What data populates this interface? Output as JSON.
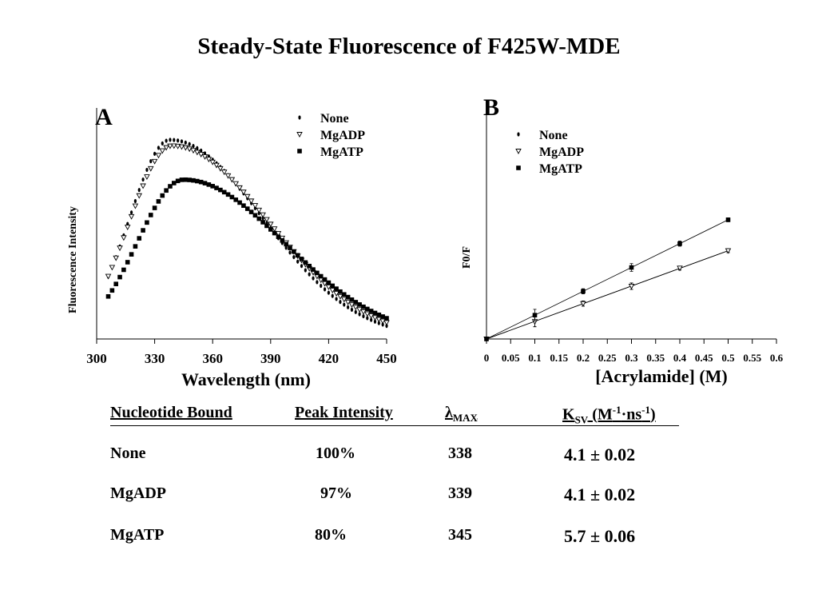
{
  "title": "Steady-State Fluorescence of F425W-MDE",
  "chart_data": [
    {
      "panel": "A",
      "type": "scatter",
      "xlabel": "Wavelength (nm)",
      "ylabel": "Fluorescence Intensity",
      "xlim": [
        300,
        450
      ],
      "ylim": [
        0,
        1.1
      ],
      "xticks": [
        300,
        330,
        360,
        390,
        420,
        450
      ],
      "xtick_labels": [
        "300",
        "330",
        "360",
        "390",
        "420",
        "450"
      ],
      "legend": {
        "position": "top-right",
        "entries": [
          "None",
          "MgADP",
          "MgATP"
        ]
      },
      "series": [
        {
          "name": "None",
          "marker": "dot",
          "color": "#000000",
          "peak_x": 338,
          "peak_y": 1.0,
          "width_left": 21,
          "width_right": 48,
          "start_x": 306,
          "end_x": 450
        },
        {
          "name": "MgADP",
          "marker": "open-triangle",
          "color": "#000000",
          "peak_x": 339,
          "peak_y": 0.97,
          "width_left": 22,
          "width_right": 50,
          "start_x": 306,
          "end_x": 450
        },
        {
          "name": "MgATP",
          "marker": "square",
          "color": "#000000",
          "peak_x": 345,
          "peak_y": 0.8,
          "width_left": 24,
          "width_right": 52,
          "start_x": 306,
          "end_x": 450
        }
      ]
    },
    {
      "panel": "B",
      "type": "scatter",
      "xlabel": "[Acrylamide] (M)",
      "ylabel": "F0/F",
      "xlim": [
        0,
        0.6
      ],
      "ylim": [
        1.0,
        4.4
      ],
      "xticks": [
        0,
        0.05,
        0.1,
        0.15,
        0.2,
        0.25,
        0.3,
        0.35,
        0.4,
        0.45,
        0.5,
        0.55,
        0.6
      ],
      "xtick_labels": [
        "0",
        "0.05",
        "0.1",
        "0.15",
        "0.2",
        "0.25",
        "0.3",
        "0.35",
        "0.4",
        "0.45",
        "0.5",
        "0.55",
        "0.6"
      ],
      "legend": {
        "position": "top-left",
        "entries": [
          "None",
          "MgADP",
          "MgATP"
        ]
      },
      "series": [
        {
          "name": "None",
          "marker": "dot",
          "color": "#000000",
          "x": [
            0,
            0.1,
            0.2,
            0.3,
            0.4,
            0.5
          ],
          "y": [
            1.0,
            1.27,
            1.55,
            1.82,
            2.1,
            2.37
          ],
          "error": [
            0,
            0.08,
            0.04,
            0.05,
            0.03,
            0.03
          ]
        },
        {
          "name": "MgADP",
          "marker": "open-triangle",
          "color": "#000000",
          "x": [
            0,
            0.1,
            0.2,
            0.3,
            0.4,
            0.5
          ],
          "y": [
            1.0,
            1.27,
            1.55,
            1.82,
            2.1,
            2.37
          ],
          "error": [
            0,
            0.08,
            0.04,
            0.05,
            0.03,
            0.03
          ]
        },
        {
          "name": "MgATP",
          "marker": "square",
          "color": "#000000",
          "x": [
            0,
            0.1,
            0.2,
            0.3,
            0.4,
            0.5
          ],
          "y": [
            1.0,
            1.37,
            1.74,
            2.11,
            2.48,
            2.85
          ],
          "error": [
            0,
            0.09,
            0.04,
            0.06,
            0.04,
            0.03
          ]
        }
      ]
    }
  ],
  "table": {
    "headers": {
      "nucleotide": "Nucleotide Bound",
      "peak": "Peak Intensity",
      "lambda_symbol": "λ",
      "lambda_sub": "MAX",
      "ksv_main": "K",
      "ksv_sub": "SV",
      "ksv_unit_open": " (M",
      "ksv_sup1": "-1",
      "ksv_mid": "·ns",
      "ksv_sup2": "-1",
      "ksv_unit_close": ")"
    },
    "rows": [
      {
        "nucleotide": "None",
        "peak": "100%",
        "lambda": "338",
        "ksv": "4.1 ± 0.02"
      },
      {
        "nucleotide": "MgADP",
        "peak": "97%",
        "lambda": "339",
        "ksv": "4.1 ± 0.02"
      },
      {
        "nucleotide": "MgATP",
        "peak": "80%",
        "lambda": "345",
        "ksv": "5.7 ± 0.06"
      }
    ]
  }
}
